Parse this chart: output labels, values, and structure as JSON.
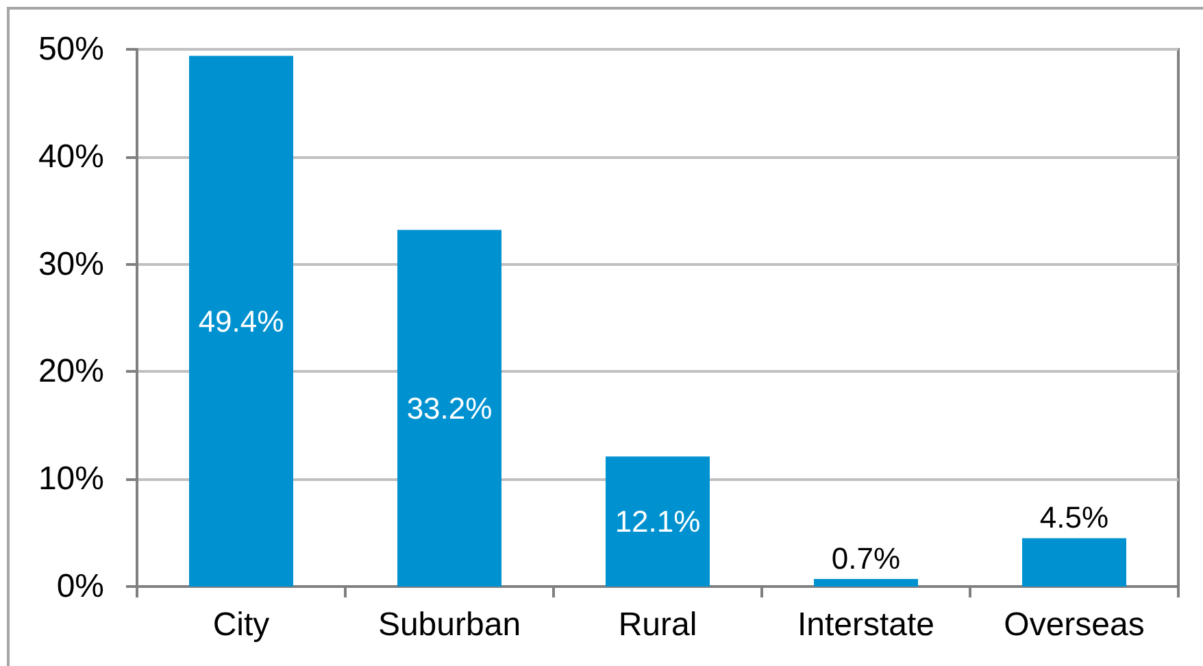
{
  "chart_data": {
    "type": "bar",
    "categories": [
      "City",
      "Suburban",
      "Rural",
      "Interstate",
      "Overseas"
    ],
    "values": [
      49.4,
      33.2,
      12.1,
      0.7,
      4.5
    ],
    "color": "#0092d0",
    "value_labels": [
      "49.4%",
      "33.2%",
      "12.1%",
      "0.7%",
      "4.5%"
    ],
    "ylim": [
      0,
      50
    ],
    "yticks": [
      {
        "value": 0,
        "label": "0%"
      },
      {
        "value": 10,
        "label": "10%"
      },
      {
        "value": 20,
        "label": "20%"
      },
      {
        "value": 30,
        "label": "30%"
      },
      {
        "value": 40,
        "label": "40%"
      },
      {
        "value": 50,
        "label": "50%"
      }
    ],
    "grid": "y"
  }
}
